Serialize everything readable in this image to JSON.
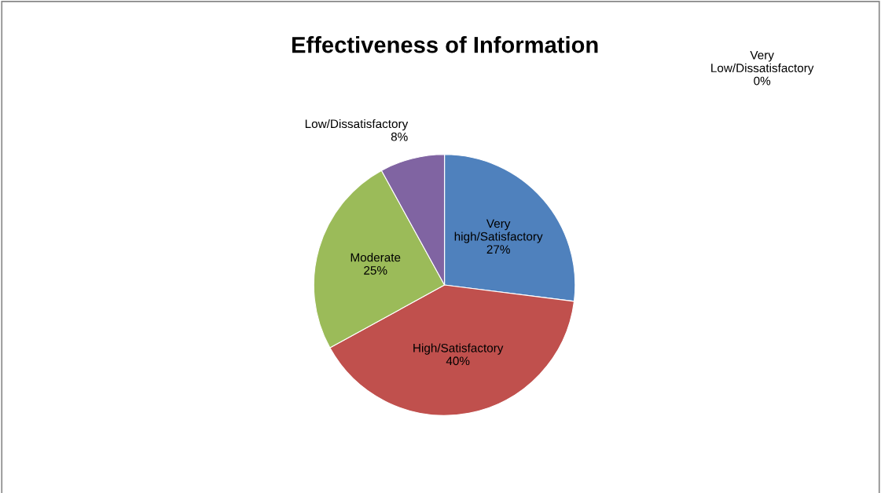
{
  "chart_data": {
    "type": "pie",
    "title": "Effectiveness of Information",
    "categories": [
      "Very high/Satisfactory",
      "High/Satisfactory",
      "Moderate",
      "Low/Dissatisfactory",
      "Very Low/Dissatisfactory"
    ],
    "values": [
      27,
      40,
      25,
      8,
      0
    ],
    "colors": [
      "#4f81bd",
      "#c0504d",
      "#9bbb59",
      "#8064a2",
      "#4bacc6"
    ],
    "value_labels": [
      "27%",
      "40%",
      "25%",
      "8%",
      "0%"
    ],
    "legend": false
  }
}
